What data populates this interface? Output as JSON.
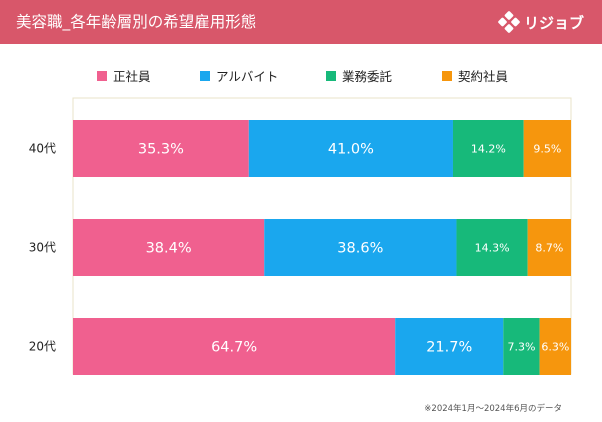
{
  "header": {
    "title": "美容職_各年齢層別の希望雇用形態",
    "brand": "リジョブ"
  },
  "colors": {
    "header_bg": "#d8576a",
    "plot_border": "#e8e3c8",
    "series": [
      "#f0608f",
      "#1aa7ee",
      "#17b97a",
      "#f6960d"
    ]
  },
  "chart_data": {
    "type": "bar",
    "orientation": "horizontal",
    "stacked": "percent",
    "categories": [
      "40代",
      "30代",
      "20代"
    ],
    "series": [
      {
        "name": "正社員",
        "values": [
          35.3,
          38.4,
          64.7
        ],
        "labels": [
          "35.3%",
          "38.4%",
          "64.7%"
        ]
      },
      {
        "name": "アルバイト",
        "values": [
          41.0,
          38.6,
          21.7
        ],
        "labels": [
          "41.0%",
          "38.6%",
          "21.7%"
        ]
      },
      {
        "name": "業務委託",
        "values": [
          14.2,
          14.3,
          7.3
        ],
        "labels": [
          "14.2%",
          "14.3%",
          "7.3%"
        ]
      },
      {
        "name": "契約社員",
        "values": [
          9.5,
          8.7,
          6.3
        ],
        "labels": [
          "9.5%",
          "8.7%",
          "6.3%"
        ]
      }
    ],
    "xlim": [
      0,
      100
    ],
    "legend": "top",
    "grid": false
  },
  "footnote": "※2024年1月～2024年6月のデータ"
}
